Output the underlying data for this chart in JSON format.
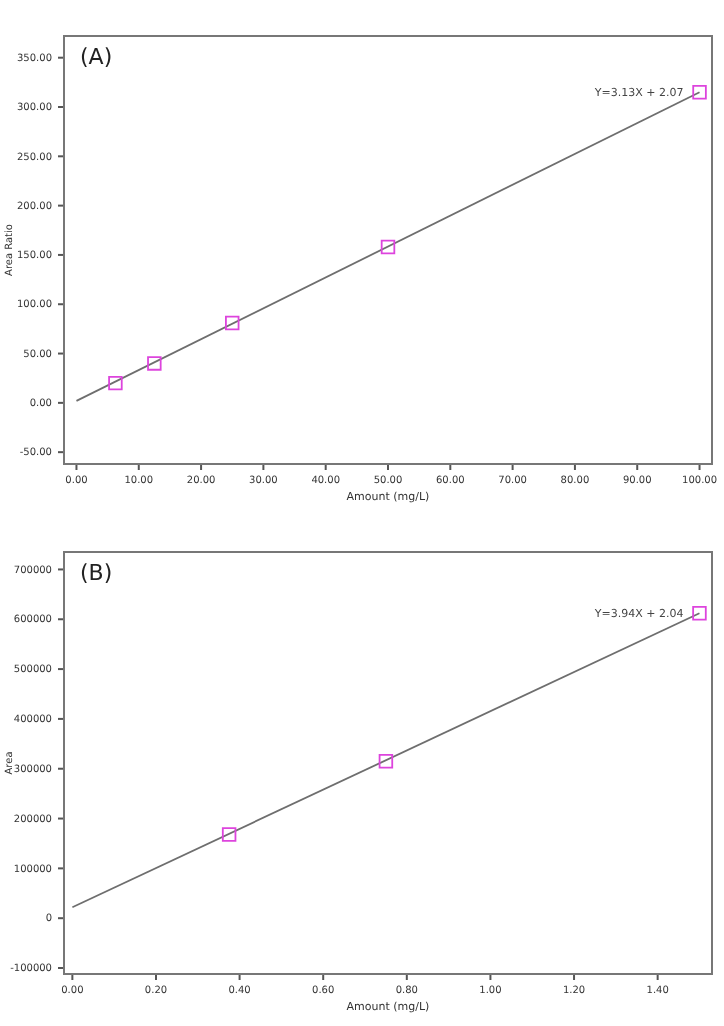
{
  "chart_data": [
    {
      "type": "scatter",
      "title": "(A)",
      "xlabel": "Amount (mg/L)",
      "ylabel": "Area Ratio",
      "marker": "square",
      "xlim": [
        -2,
        102
      ],
      "ylim": [
        -62,
        372
      ],
      "xticks": [
        {
          "value": 0,
          "label": "0.00"
        },
        {
          "value": 10,
          "label": "10.00"
        },
        {
          "value": 20,
          "label": "20.00"
        },
        {
          "value": 30,
          "label": "30.00"
        },
        {
          "value": 40,
          "label": "40.00"
        },
        {
          "value": 50,
          "label": "50.00"
        },
        {
          "value": 60,
          "label": "60.00"
        },
        {
          "value": 70,
          "label": "70.00"
        },
        {
          "value": 80,
          "label": "80.00"
        },
        {
          "value": 90,
          "label": "90.00"
        },
        {
          "value": 100,
          "label": "100.00"
        }
      ],
      "yticks": [
        {
          "value": -50,
          "label": "-50.00"
        },
        {
          "value": 0,
          "label": "0.00"
        },
        {
          "value": 50,
          "label": "50.00"
        },
        {
          "value": 100,
          "label": "100.00"
        },
        {
          "value": 150,
          "label": "150.00"
        },
        {
          "value": 200,
          "label": "200.00"
        },
        {
          "value": 250,
          "label": "250.00"
        },
        {
          "value": 300,
          "label": "300.00"
        },
        {
          "value": 350,
          "label": "350.00"
        }
      ],
      "annotations": [
        {
          "text": "Y=3.13X + 2.07",
          "x": 100,
          "y": 315
        }
      ],
      "series": [
        {
          "type": "line",
          "marker": "none",
          "color": "#6e6e6e",
          "x": [
            0,
            100
          ],
          "values": [
            2,
            315
          ]
        },
        {
          "color": "#dd44dd",
          "x": [
            6.25,
            12.5,
            25,
            50,
            100
          ],
          "values": [
            20,
            40,
            81,
            158,
            315
          ]
        }
      ]
    },
    {
      "type": "scatter",
      "title": "(B)",
      "xlabel": "Amount (mg/L)",
      "ylabel": "Area",
      "marker": "square",
      "xlim": [
        -0.02,
        1.53
      ],
      "ylim": [
        -112000,
        735000
      ],
      "xticks": [
        {
          "value": 0,
          "label": "0.00"
        },
        {
          "value": 0.2,
          "label": "0.20"
        },
        {
          "value": 0.4,
          "label": "0.40"
        },
        {
          "value": 0.6,
          "label": "0.60"
        },
        {
          "value": 0.8,
          "label": "0.80"
        },
        {
          "value": 1,
          "label": "1.00"
        },
        {
          "value": 1.2,
          "label": "1.20"
        },
        {
          "value": 1.4,
          "label": "1.40"
        }
      ],
      "yticks": [
        -100000,
        0,
        100000,
        200000,
        300000,
        400000,
        500000,
        600000,
        700000
      ],
      "annotations": [
        {
          "text": "Y=3.94X + 2.04",
          "x": 1.5,
          "y": 612000
        }
      ],
      "series": [
        {
          "type": "line",
          "marker": "none",
          "color": "#6e6e6e",
          "x": [
            0,
            1.5
          ],
          "values": [
            22000,
            612000
          ]
        },
        {
          "color": "#dd44dd",
          "x": [
            0.375,
            0.75,
            1.5
          ],
          "values": [
            168000,
            315000,
            612000
          ]
        }
      ]
    }
  ]
}
